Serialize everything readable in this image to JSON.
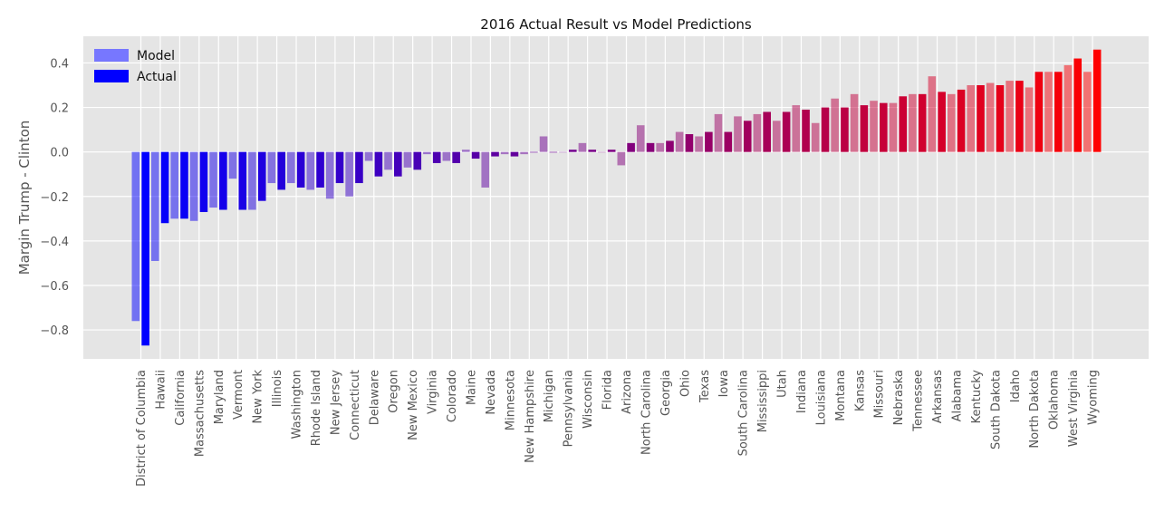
{
  "chart_data": {
    "type": "bar",
    "title": "2016 Actual Result vs Model Predictions",
    "xlabel": "",
    "ylabel": "Margin Trump - Clinton",
    "ylim": [
      -0.93,
      0.52
    ],
    "yticks": [
      -0.8,
      -0.6,
      -0.4,
      -0.2,
      0.0,
      0.2,
      0.4
    ],
    "ytick_labels": [
      "−0.8",
      "−0.6",
      "−0.4",
      "−0.2",
      "0.0",
      "0.2",
      "0.4"
    ],
    "grid": true,
    "legend_position": "top-left",
    "background_color": "#e5e5e5",
    "categories": [
      "District of Columbia",
      "Hawaii",
      "California",
      "Massachusetts",
      "Maryland",
      "Vermont",
      "New York",
      "Illinois",
      "Washington",
      "Rhode Island",
      "New Jersey",
      "Connecticut",
      "Delaware",
      "Oregon",
      "New Mexico",
      "Virginia",
      "Colorado",
      "Maine",
      "Nevada",
      "Minnesota",
      "New Hampshire",
      "Michigan",
      "Pennsylvania",
      "Wisconsin",
      "Florida",
      "Arizona",
      "North Carolina",
      "Georgia",
      "Ohio",
      "Texas",
      "Iowa",
      "South Carolina",
      "Mississippi",
      "Utah",
      "Indiana",
      "Louisiana",
      "Montana",
      "Kansas",
      "Missouri",
      "Nebraska",
      "Tennessee",
      "Arkansas",
      "Alabama",
      "Kentucky",
      "South Dakota",
      "Idaho",
      "North Dakota",
      "Oklahoma",
      "West Virginia",
      "Wyoming"
    ],
    "series": [
      {
        "name": "Model",
        "legend_color": "#7777ff",
        "values": [
          -0.76,
          -0.49,
          -0.3,
          -0.31,
          -0.25,
          -0.12,
          -0.26,
          -0.14,
          -0.14,
          -0.17,
          -0.21,
          -0.2,
          -0.04,
          -0.08,
          -0.07,
          -0.01,
          -0.04,
          0.01,
          -0.16,
          -0.01,
          -0.01,
          0.07,
          0.0,
          0.04,
          0.0,
          -0.06,
          0.12,
          0.04,
          0.09,
          0.07,
          0.17,
          0.16,
          0.17,
          0.14,
          0.21,
          0.13,
          0.24,
          0.26,
          0.23,
          0.22,
          0.26,
          0.34,
          0.26,
          0.3,
          0.31,
          0.32,
          0.29,
          0.36,
          0.39,
          0.36
        ]
      },
      {
        "name": "Actual",
        "legend_color": "#0000ff",
        "values": [
          -0.87,
          -0.32,
          -0.3,
          -0.27,
          -0.26,
          -0.26,
          -0.22,
          -0.17,
          -0.16,
          -0.16,
          -0.14,
          -0.14,
          -0.11,
          -0.11,
          -0.08,
          -0.05,
          -0.05,
          -0.03,
          -0.02,
          -0.02,
          0.0,
          0.0,
          0.01,
          0.01,
          0.01,
          0.04,
          0.04,
          0.05,
          0.08,
          0.09,
          0.09,
          0.14,
          0.18,
          0.18,
          0.19,
          0.2,
          0.2,
          0.21,
          0.22,
          0.25,
          0.26,
          0.27,
          0.28,
          0.3,
          0.3,
          0.32,
          0.36,
          0.36,
          0.42,
          0.46
        ]
      }
    ]
  }
}
